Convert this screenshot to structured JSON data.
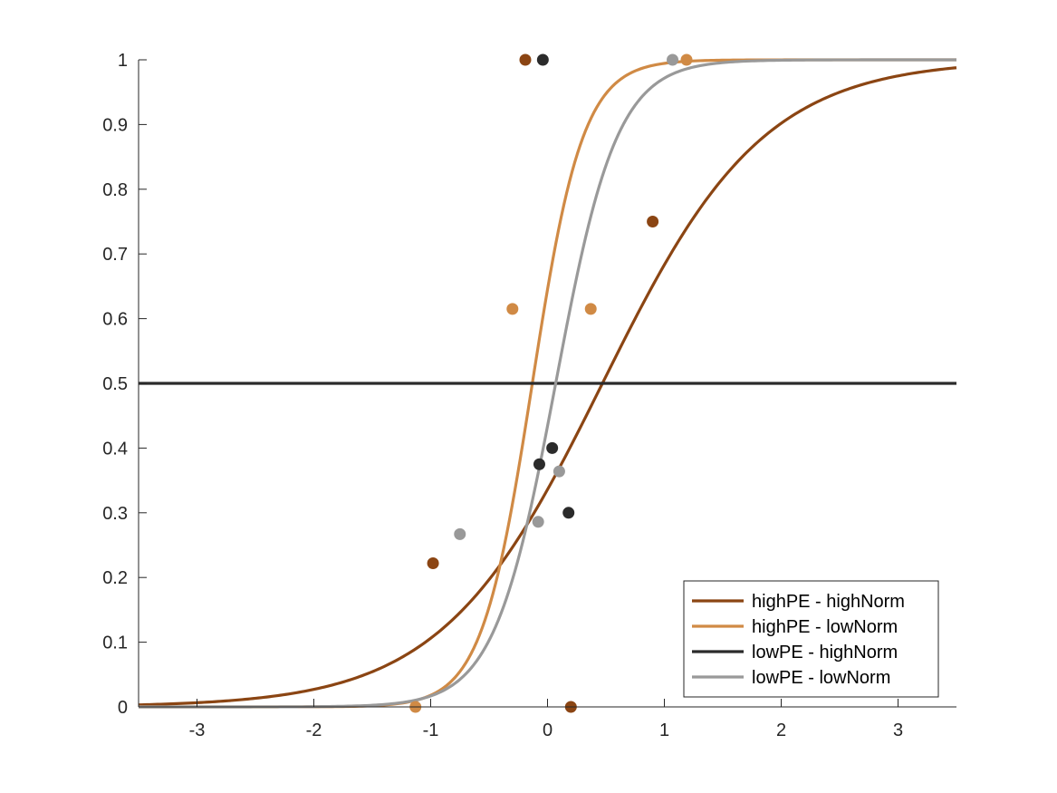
{
  "chart_data": {
    "type": "scatter",
    "title": "",
    "xlabel": "",
    "ylabel": "",
    "xlim": [
      -3.5,
      3.5
    ],
    "ylim": [
      0,
      1
    ],
    "grid": false,
    "legend_position": "bottom-right",
    "x_ticks": [
      -3,
      -2,
      -1,
      0,
      1,
      2,
      3
    ],
    "x_tick_labels": [
      "-3",
      "-2",
      "-1",
      "0",
      "1",
      "2",
      "3"
    ],
    "y_ticks": [
      0,
      0.1,
      0.2,
      0.3,
      0.4,
      0.5,
      0.6,
      0.7,
      0.8,
      0.9,
      1
    ],
    "y_tick_labels": [
      "0",
      "0.1",
      "0.2",
      "0.3",
      "0.4",
      "0.5",
      "0.6",
      "0.7",
      "0.8",
      "0.9",
      "1"
    ],
    "series": [
      {
        "name": "highPE - highNorm",
        "color": "#8B4513",
        "curve": {
          "kind": "logistic",
          "midpoint": 0.47,
          "slope": 1.45
        },
        "points": [
          {
            "x": -0.19,
            "y": 1.0
          },
          {
            "x": 0.9,
            "y": 0.75
          },
          {
            "x": -0.98,
            "y": 0.222
          },
          {
            "x": 0.2,
            "y": 0.0
          }
        ]
      },
      {
        "name": "highPE - lowNorm",
        "color": "#D08A45",
        "curve": {
          "kind": "logistic",
          "midpoint": -0.13,
          "slope": 4.6
        },
        "points": [
          {
            "x": 1.19,
            "y": 1.0
          },
          {
            "x": -0.3,
            "y": 0.615
          },
          {
            "x": 0.37,
            "y": 0.615
          },
          {
            "x": -1.13,
            "y": 0.0
          }
        ]
      },
      {
        "name": "lowPE - highNorm",
        "color": "#2B2B2B",
        "curve": {
          "kind": "constant",
          "value": 0.5
        },
        "points": [
          {
            "x": -0.04,
            "y": 1.0
          },
          {
            "x": 0.04,
            "y": 0.4
          },
          {
            "x": -0.07,
            "y": 0.375
          },
          {
            "x": 0.18,
            "y": 0.3
          }
        ]
      },
      {
        "name": "lowPE - lowNorm",
        "color": "#999999",
        "curve": {
          "kind": "logistic",
          "midpoint": 0.07,
          "slope": 3.8
        },
        "points": [
          {
            "x": 1.07,
            "y": 1.0
          },
          {
            "x": 0.1,
            "y": 0.364
          },
          {
            "x": -0.08,
            "y": 0.286
          },
          {
            "x": -0.75,
            "y": 0.267
          }
        ]
      }
    ]
  }
}
